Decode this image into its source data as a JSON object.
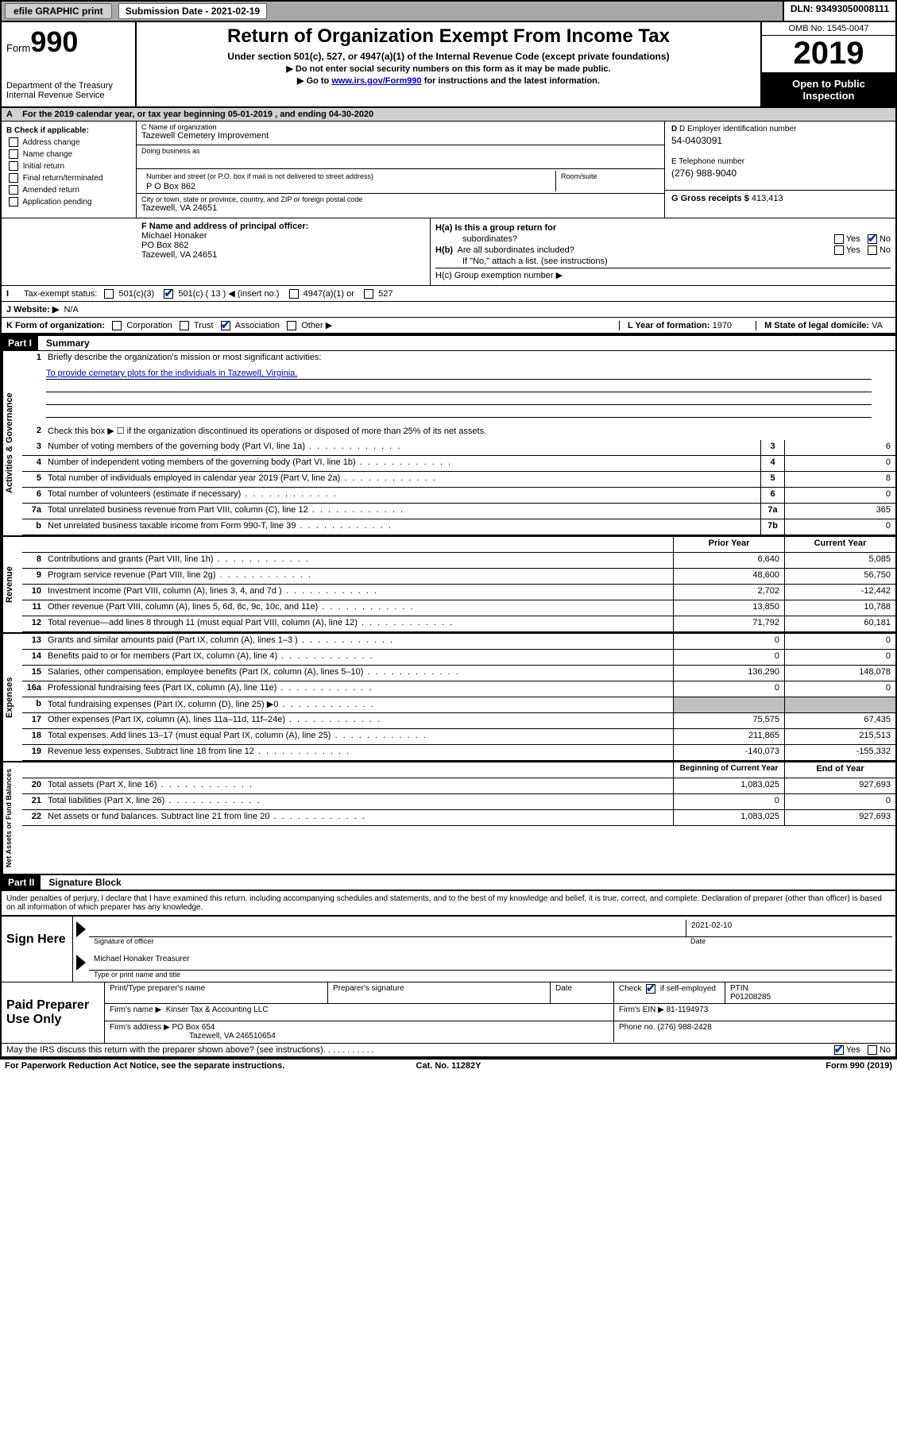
{
  "topbar": {
    "efile_btn": "efile GRAPHIC print",
    "sub_date_label": "Submission Date - 2021-02-19",
    "dln": "DLN: 93493050008111"
  },
  "header": {
    "form_word": "Form",
    "form_num": "990",
    "dept1": "Department of the Treasury",
    "dept2": "Internal Revenue Service",
    "title": "Return of Organization Exempt From Income Tax",
    "sub1": "Under section 501(c), 527, or 4947(a)(1) of the Internal Revenue Code (except private foundations)",
    "sub2": "▶ Do not enter social security numbers on this form as it may be made public.",
    "sub3_pre": "▶ Go to ",
    "sub3_link": "www.irs.gov/Form990",
    "sub3_post": " for instructions and the latest information.",
    "omb": "OMB No. 1545-0047",
    "year": "2019",
    "open1": "Open to Public",
    "open2": "Inspection"
  },
  "a_line": "For the 2019 calendar year, or tax year beginning 05-01-2019   , and ending 04-30-2020",
  "b": {
    "label": "B Check if applicable:",
    "options": [
      "Address change",
      "Name change",
      "Initial return",
      "Final return/terminated",
      "Amended return",
      "Application pending"
    ]
  },
  "c": {
    "name_label": "C Name of organization",
    "name": "Tazewell Cemetery Improvement",
    "dba_label": "Doing business as",
    "dba": "",
    "addr_label": "Number and street (or P.O. box if mail is not delivered to street address)",
    "addr": "P O Box 862",
    "room_label": "Room/suite",
    "city_label": "City or town, state or province, country, and ZIP or foreign postal code",
    "city": "Tazewell, VA  24651"
  },
  "d": {
    "ein_label": "D Employer identification number",
    "ein": "54-0403091",
    "phone_label": "E Telephone number",
    "phone": "(276) 988-9040",
    "gross_label": "G Gross receipts $ ",
    "gross": "413,413"
  },
  "f": {
    "label": "F  Name and address of principal officer:",
    "name": "Michael Honaker",
    "addr1": "PO Box 862",
    "addr2": "Tazewell, VA  24651"
  },
  "h": {
    "a_label": "H(a)  Is this a group return for",
    "a_label2": "subordinates?",
    "b_label": "H(b)  Are all subordinates included?",
    "b_note": "If \"No,\" attach a list. (see instructions)",
    "c_label": "H(c)  Group exemption number ▶"
  },
  "i": {
    "label": "Tax-exempt status:",
    "opt1": "501(c)(3)",
    "opt2": "501(c) ( 13 ) ◀ (insert no.)",
    "opt3": "4947(a)(1) or",
    "opt4": "527"
  },
  "j": {
    "label": "J   Website: ▶",
    "val": "N/A"
  },
  "k": {
    "label": "K Form of organization:",
    "opts": [
      "Corporation",
      "Trust",
      "Association",
      "Other ▶"
    ],
    "l_label": "L Year of formation: ",
    "l_val": "1970",
    "m_label": "M State of legal domicile: ",
    "m_val": "VA"
  },
  "part1": {
    "hdr": "Part I",
    "title": "Summary"
  },
  "gov": {
    "vlabel": "Activities & Governance",
    "l1a": "Briefly describe the organization's mission or most significant activities:",
    "l1b": "To provide cemetary plots for the individuals in Tazewell, Virginia.",
    "l2": "Check this box ▶ ☐  if the organization discontinued its operations or disposed of more than 25% of its net assets.",
    "rows": [
      {
        "n": "3",
        "d": "Number of voting members of the governing body (Part VI, line 1a)",
        "b": "3",
        "v": "6"
      },
      {
        "n": "4",
        "d": "Number of independent voting members of the governing body (Part VI, line 1b)",
        "b": "4",
        "v": "0"
      },
      {
        "n": "5",
        "d": "Total number of individuals employed in calendar year 2019 (Part V, line 2a)",
        "b": "5",
        "v": "8"
      },
      {
        "n": "6",
        "d": "Total number of volunteers (estimate if necessary)",
        "b": "6",
        "v": "0"
      },
      {
        "n": "7a",
        "d": "Total unrelated business revenue from Part VIII, column (C), line 12",
        "b": "7a",
        "v": "365"
      },
      {
        "n": " b",
        "d": "Net unrelated business taxable income from Form 990-T, line 39",
        "b": "7b",
        "v": "0"
      }
    ]
  },
  "rev": {
    "vlabel": "Revenue",
    "hdr_prior": "Prior Year",
    "hdr_curr": "Current Year",
    "rows": [
      {
        "n": "8",
        "d": "Contributions and grants (Part VIII, line 1h)",
        "p": "6,640",
        "c": "5,085"
      },
      {
        "n": "9",
        "d": "Program service revenue (Part VIII, line 2g)",
        "p": "48,600",
        "c": "56,750"
      },
      {
        "n": "10",
        "d": "Investment income (Part VIII, column (A), lines 3, 4, and 7d )",
        "p": "2,702",
        "c": "-12,442"
      },
      {
        "n": "11",
        "d": "Other revenue (Part VIII, column (A), lines 5, 6d, 8c, 9c, 10c, and 11e)",
        "p": "13,850",
        "c": "10,788"
      },
      {
        "n": "12",
        "d": "Total revenue—add lines 8 through 11 (must equal Part VIII, column (A), line 12)",
        "p": "71,792",
        "c": "60,181"
      }
    ]
  },
  "exp": {
    "vlabel": "Expenses",
    "rows": [
      {
        "n": "13",
        "d": "Grants and similar amounts paid (Part IX, column (A), lines 1–3 )",
        "p": "0",
        "c": "0"
      },
      {
        "n": "14",
        "d": "Benefits paid to or for members (Part IX, column (A), line 4)",
        "p": "0",
        "c": "0"
      },
      {
        "n": "15",
        "d": "Salaries, other compensation, employee benefits (Part IX, column (A), lines 5–10)",
        "p": "136,290",
        "c": "148,078"
      },
      {
        "n": "16a",
        "d": "Professional fundraising fees (Part IX, column (A), line 11e)",
        "p": "0",
        "c": "0"
      },
      {
        "n": "b",
        "d": "Total fundraising expenses (Part IX, column (D), line 25) ▶0",
        "p": "grey",
        "c": "grey"
      },
      {
        "n": "17",
        "d": "Other expenses (Part IX, column (A), lines 11a–11d, 11f–24e)",
        "p": "75,575",
        "c": "67,435"
      },
      {
        "n": "18",
        "d": "Total expenses. Add lines 13–17 (must equal Part IX, column (A), line 25)",
        "p": "211,865",
        "c": "215,513"
      },
      {
        "n": "19",
        "d": "Revenue less expenses. Subtract line 18 from line 12",
        "p": "-140,073",
        "c": "-155,332"
      }
    ]
  },
  "net": {
    "vlabel": "Net Assets or Fund Balances",
    "hdr_prior": "Beginning of Current Year",
    "hdr_curr": "End of Year",
    "rows": [
      {
        "n": "20",
        "d": "Total assets (Part X, line 16)",
        "p": "1,083,025",
        "c": "927,693"
      },
      {
        "n": "21",
        "d": "Total liabilities (Part X, line 26)",
        "p": "0",
        "c": "0"
      },
      {
        "n": "22",
        "d": "Net assets or fund balances. Subtract line 21 from line 20",
        "p": "1,083,025",
        "c": "927,693"
      }
    ]
  },
  "part2": {
    "hdr": "Part II",
    "title": "Signature Block"
  },
  "penalty": "Under penalties of perjury, I declare that I have examined this return, including accompanying schedules and statements, and to the best of my knowledge and belief, it is true, correct, and complete. Declaration of preparer (other than officer) is based on all information of which preparer has any knowledge.",
  "sign": {
    "left": "Sign Here",
    "sig_label": "Signature of officer",
    "date": "2021-02-10",
    "date_label": "Date",
    "name": "Michael Honaker  Treasurer",
    "name_label": "Type or print name and title"
  },
  "paid": {
    "left": "Paid Preparer Use Only",
    "h1": "Print/Type preparer's name",
    "h2": "Preparer's signature",
    "h3": "Date",
    "h4a": "Check",
    "h4b": "if self-employed",
    "h5": "PTIN",
    "ptin": "P01208285",
    "firm_label": "Firm's name      ▶",
    "firm": "Kinser Tax & Accounting LLC",
    "ein_label": "Firm's EIN ▶",
    "ein": "81-1194973",
    "addr_label": "Firm's address ▶",
    "addr1": "PO Box 654",
    "addr2": "Tazewell, VA  246510654",
    "phone_label": "Phone no.",
    "phone": "(276) 988-2428"
  },
  "discuss": "May the IRS discuss this return with the preparer shown above? (see instructions)",
  "paperwork": {
    "l": "For Paperwork Reduction Act Notice, see the separate instructions.",
    "c": "Cat. No. 11282Y",
    "r": "Form 990 (2019)"
  },
  "yn": {
    "yes": "Yes",
    "no": "No"
  }
}
